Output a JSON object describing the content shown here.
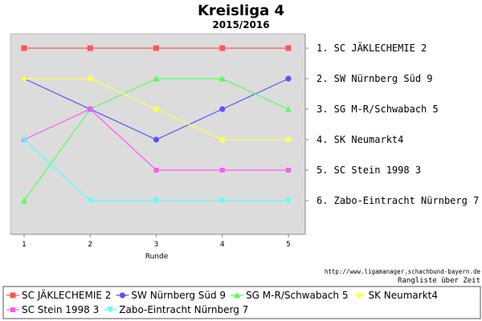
{
  "chart_data": {
    "type": "line",
    "title": "Kreisliga 4",
    "subtitle": "2015/2016",
    "xlabel": "Runde",
    "ylabel": "",
    "x": [
      1,
      2,
      3,
      4,
      5
    ],
    "ylim": [
      1,
      6
    ],
    "y_inverted": true,
    "grid": false,
    "legend_position": "bottom",
    "series": [
      {
        "name": "SC JÄKLECHEMIE 2",
        "values": [
          1,
          1,
          1,
          1,
          1
        ],
        "color": "#ff5555",
        "marker": "square"
      },
      {
        "name": "SW Nürnberg Süd 9",
        "values": [
          2,
          3,
          4,
          3,
          2
        ],
        "color": "#5555ff",
        "marker": "circle"
      },
      {
        "name": "SG M-R/Schwabach 5",
        "values": [
          6,
          3,
          2,
          2,
          3
        ],
        "color": "#55ff55",
        "marker": "triangle-up"
      },
      {
        "name": "SK Neumarkt4",
        "values": [
          2,
          2,
          3,
          4,
          4
        ],
        "color": "#ffff55",
        "marker": "diamond"
      },
      {
        "name": "SC Stein 1998 3",
        "values": [
          4,
          3,
          5,
          5,
          5
        ],
        "color": "#ff55ff",
        "marker": "square-small"
      },
      {
        "name": "Zabo-Eintracht Nürnberg 7",
        "values": [
          4,
          6,
          6,
          6,
          6
        ],
        "color": "#55ffff",
        "marker": "triangle-down"
      }
    ],
    "rank_labels": [
      "1. SC JÄKLECHEMIE 2",
      "2. SW Nürnberg Süd 9",
      "3. SG M-R/Schwabach 5",
      "4. SK Neumarkt4",
      "5. SC Stein 1998 3",
      "6. Zabo-Eintracht Nürnberg 7"
    ],
    "source": "http://www.ligamanager.schachbund-bayern.de",
    "caption": "Rangliste über Zeit"
  }
}
